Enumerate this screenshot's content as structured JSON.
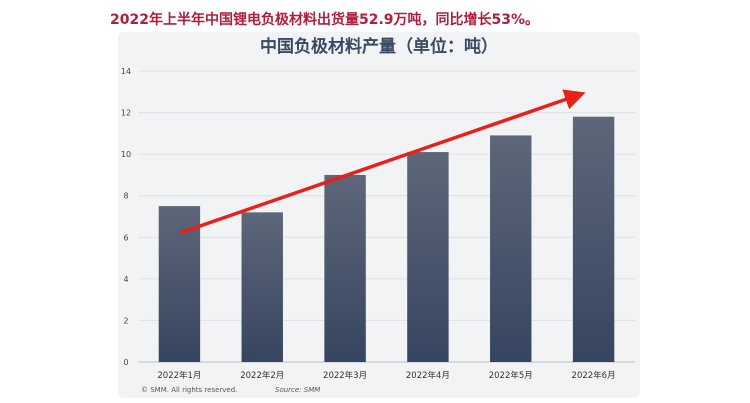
{
  "headline": "2022年上半年中国锂电负极材料出货量52.9万吨，同比增长53%。",
  "chart_data": {
    "type": "bar",
    "title": "中国负极材料产量（单位：吨）",
    "categories": [
      "2022年1月",
      "2022年2月",
      "2022年3月",
      "2022年4月",
      "2022年5月",
      "2022年6月"
    ],
    "values": [
      7.5,
      7.2,
      9.0,
      10.1,
      10.9,
      11.8
    ],
    "ylim": [
      0,
      14
    ],
    "yticks": [
      0,
      2,
      4,
      6,
      8,
      10,
      12,
      14
    ],
    "grid": true,
    "trend_arrow": {
      "from": [
        0,
        6.2
      ],
      "to": [
        5,
        12.9
      ],
      "color": "#e8201a"
    },
    "bar_gradient": [
      "#5e6779",
      "#364560"
    ]
  },
  "footer": {
    "copyright": "© SMM. All rights reserved.",
    "source": "Source: SMM"
  }
}
